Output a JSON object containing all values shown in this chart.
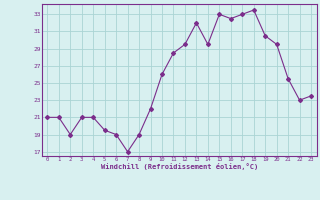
{
  "x": [
    0,
    1,
    2,
    3,
    4,
    5,
    6,
    7,
    8,
    9,
    10,
    11,
    12,
    13,
    14,
    15,
    16,
    17,
    18,
    19,
    20,
    21,
    22,
    23
  ],
  "y": [
    21,
    21,
    19,
    21,
    21,
    19.5,
    19,
    17,
    19,
    22,
    26,
    28.5,
    29.5,
    32,
    29.5,
    33,
    32.5,
    33,
    33.5,
    30.5,
    29.5,
    25.5,
    23,
    23.5
  ],
  "line_color": "#7B2D8B",
  "marker": "D",
  "marker_size": 2,
  "bg_color": "#d8f0f0",
  "grid_color": "#aad4d4",
  "tick_color": "#7B2D8B",
  "label_color": "#7B2D8B",
  "xlabel": "Windchill (Refroidissement éolien,°C)",
  "yticks": [
    17,
    19,
    21,
    23,
    25,
    27,
    29,
    31,
    33
  ],
  "xticks": [
    0,
    1,
    2,
    3,
    4,
    5,
    6,
    7,
    8,
    9,
    10,
    11,
    12,
    13,
    14,
    15,
    16,
    17,
    18,
    19,
    20,
    21,
    22,
    23
  ],
  "ylim": [
    16.5,
    34.2
  ],
  "xlim": [
    -0.5,
    23.5
  ]
}
